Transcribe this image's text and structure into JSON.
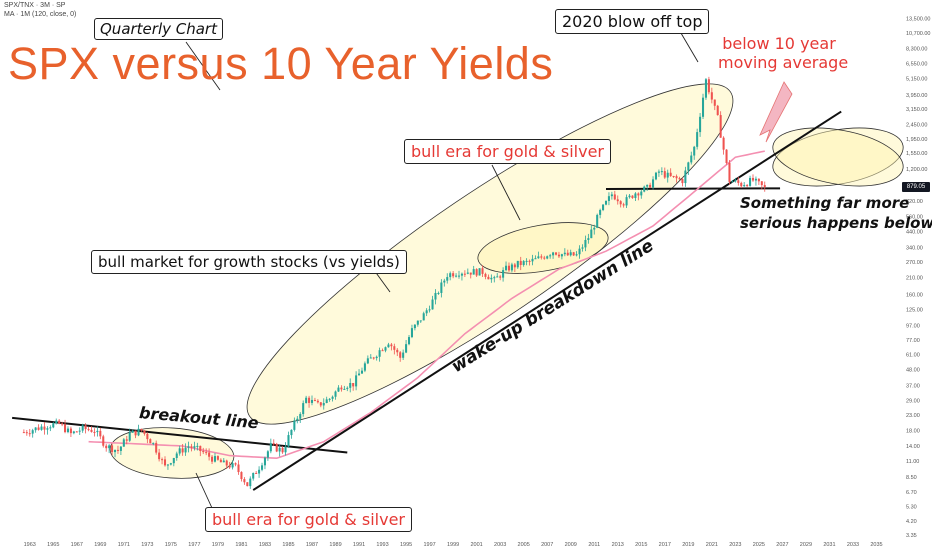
{
  "header": {
    "symbol_line": "SPX/TNX · 3M · SP",
    "ma_line": "MA · 1M (120, close, 0)"
  },
  "title": "SPX versus 10 Year Yields",
  "badge": "Quarterly Chart",
  "annotations": {
    "blowoff": "2020 blow off top",
    "below_ma_1": "below 10 year",
    "below_ma_2": "moving average",
    "gold_upper": "bull era for gold & silver",
    "gold_lower": "bull era for gold & silver",
    "growth": "bull market for growth stocks (vs yields)",
    "breakout": "breakout line",
    "wakeup": "wake-up breakdown line",
    "serious_1": "Something far more",
    "serious_2": "serious happens below this"
  },
  "colors": {
    "up": "#26a69a",
    "down": "#ef5350",
    "ma": "#f48fb1",
    "ellipse_fill": "#fff3b0",
    "title": "#e8612c",
    "price_badge": "#131722"
  },
  "chart_data": {
    "type": "candlestick",
    "scale": "log",
    "ylim": [
      3.35,
      17000
    ],
    "xlim": [
      1962,
      2037
    ],
    "current_value": "879.05",
    "y_ticks": [
      {
        "v": 3.35,
        "label": "3.35"
      },
      {
        "v": 4.2,
        "label": "4.20"
      },
      {
        "v": 5.3,
        "label": "5.30"
      },
      {
        "v": 6.7,
        "label": "6.70"
      },
      {
        "v": 8.5,
        "label": "8.50"
      },
      {
        "v": 11,
        "label": "11.00"
      },
      {
        "v": 14,
        "label": "14.00"
      },
      {
        "v": 18,
        "label": "18.00"
      },
      {
        "v": 23,
        "label": "23.00"
      },
      {
        "v": 29,
        "label": "29.00"
      },
      {
        "v": 37,
        "label": "37.00"
      },
      {
        "v": 48,
        "label": "48.00"
      },
      {
        "v": 61,
        "label": "61.00"
      },
      {
        "v": 77,
        "label": "77.00"
      },
      {
        "v": 97,
        "label": "97.00"
      },
      {
        "v": 125,
        "label": "125.00"
      },
      {
        "v": 160,
        "label": "160.00"
      },
      {
        "v": 210,
        "label": "210.00"
      },
      {
        "v": 270,
        "label": "270.00"
      },
      {
        "v": 340,
        "label": "340.00"
      },
      {
        "v": 440,
        "label": "440.00"
      },
      {
        "v": 560,
        "label": "560.00"
      },
      {
        "v": 720,
        "label": "720.00"
      },
      {
        "v": 1200,
        "label": "1,200.00"
      },
      {
        "v": 1550,
        "label": "1,550.00"
      },
      {
        "v": 1950,
        "label": "1,950.00"
      },
      {
        "v": 2450,
        "label": "2,450.00"
      },
      {
        "v": 3150,
        "label": "3,150.00"
      },
      {
        "v": 3950,
        "label": "3,950.00"
      },
      {
        "v": 5150,
        "label": "5,150.00"
      },
      {
        "v": 6550,
        "label": "6,550.00"
      },
      {
        "v": 8300,
        "label": "8,300.00"
      },
      {
        "v": 10700,
        "label": "10,700.00"
      },
      {
        "v": 13500,
        "label": "13,500.00"
      },
      {
        "v": 17500,
        "label": "17,500.00"
      }
    ],
    "x_ticks": [
      1963,
      1965,
      1967,
      1969,
      1971,
      1973,
      1975,
      1977,
      1979,
      1981,
      1983,
      1985,
      1987,
      1989,
      1991,
      1993,
      1995,
      1997,
      1999,
      2001,
      2003,
      2005,
      2007,
      2009,
      2011,
      2013,
      2015,
      2017,
      2019,
      2021,
      2023,
      2025,
      2027,
      2029,
      2031,
      2033,
      2035
    ],
    "series": [
      {
        "kind": "price",
        "points": [
          [
            1962.5,
            17.5
          ],
          [
            1963.5,
            18.5
          ],
          [
            1964.5,
            19.5
          ],
          [
            1965.5,
            20
          ],
          [
            1966.5,
            17
          ],
          [
            1967.5,
            18.5
          ],
          [
            1968.5,
            18
          ],
          [
            1969.5,
            14
          ],
          [
            1970.5,
            13
          ],
          [
            1971.5,
            17
          ],
          [
            1972.5,
            18
          ],
          [
            1973.5,
            14.5
          ],
          [
            1974.5,
            10
          ],
          [
            1975.5,
            12.5
          ],
          [
            1976.5,
            14
          ],
          [
            1977.5,
            13
          ],
          [
            1978.5,
            11.5
          ],
          [
            1979.5,
            10.5
          ],
          [
            1980.5,
            10
          ],
          [
            1981.5,
            7.5
          ],
          [
            1982.5,
            10
          ],
          [
            1983.5,
            14
          ],
          [
            1984.5,
            13
          ],
          [
            1985.5,
            20
          ],
          [
            1986.5,
            30
          ],
          [
            1987.5,
            27
          ],
          [
            1988.5,
            30
          ],
          [
            1989.5,
            37
          ],
          [
            1990.5,
            38
          ],
          [
            1991.5,
            52
          ],
          [
            1992.5,
            62
          ],
          [
            1993.5,
            75
          ],
          [
            1994.5,
            58
          ],
          [
            1995.5,
            90
          ],
          [
            1996.5,
            115
          ],
          [
            1997.5,
            155
          ],
          [
            1998.5,
            220
          ],
          [
            1999.5,
            230
          ],
          [
            2000.5,
            230
          ],
          [
            2001.5,
            230
          ],
          [
            2002.5,
            200
          ],
          [
            2003.5,
            240
          ],
          [
            2004.5,
            260
          ],
          [
            2005.5,
            270
          ],
          [
            2006.5,
            290
          ],
          [
            2007.5,
            320
          ],
          [
            2008.5,
            300
          ],
          [
            2009.5,
            300
          ],
          [
            2010.5,
            400
          ],
          [
            2011.5,
            600
          ],
          [
            2012.5,
            800
          ],
          [
            2013.5,
            700
          ],
          [
            2014.5,
            820
          ],
          [
            2015.5,
            880
          ],
          [
            2016.5,
            1150
          ],
          [
            2017.5,
            1050
          ],
          [
            2018.5,
            1000
          ],
          [
            2019.5,
            1700
          ],
          [
            2020.5,
            5000
          ],
          [
            2021.5,
            2700
          ],
          [
            2022.5,
            1000
          ],
          [
            2023.5,
            940
          ],
          [
            2024.5,
            1000
          ],
          [
            2025.5,
            879
          ]
        ]
      },
      {
        "kind": "ma",
        "name": "MA 120",
        "points": [
          [
            1968,
            15
          ],
          [
            1972,
            14.5
          ],
          [
            1976,
            14
          ],
          [
            1980,
            12
          ],
          [
            1984,
            11.5
          ],
          [
            1988,
            15
          ],
          [
            1992,
            24
          ],
          [
            1996,
            42
          ],
          [
            2000,
            85
          ],
          [
            2004,
            150
          ],
          [
            2008,
            240
          ],
          [
            2012,
            320
          ],
          [
            2016,
            480
          ],
          [
            2020,
            900
          ],
          [
            2023,
            1450
          ],
          [
            2025.5,
            1600
          ]
        ]
      }
    ],
    "trendlines": [
      {
        "name": "breakout line",
        "from": [
          1961.5,
          22
        ],
        "to": [
          1990,
          12.6
        ]
      },
      {
        "name": "wake-up breakdown line",
        "from": [
          1982,
          6.9
        ],
        "to": [
          2032,
          3020
        ]
      },
      {
        "name": "support",
        "from": [
          2012,
          870
        ],
        "to": [
          2026.8,
          879
        ]
      }
    ]
  }
}
